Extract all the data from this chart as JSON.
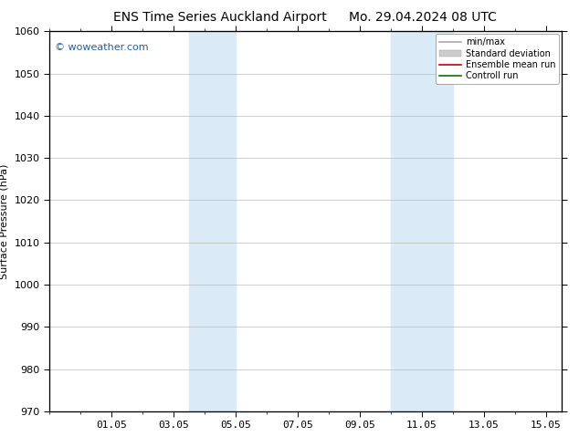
{
  "title1": "ENS Time Series Auckland Airport",
  "title2": "Mo. 29.04.2024 08 UTC",
  "ylabel": "Surface Pressure (hPa)",
  "ylim": [
    970,
    1060
  ],
  "yticks": [
    970,
    980,
    990,
    1000,
    1010,
    1020,
    1030,
    1040,
    1050,
    1060
  ],
  "xtick_labels": [
    "01.05",
    "03.05",
    "05.05",
    "07.05",
    "09.05",
    "11.05",
    "13.05",
    "15.05"
  ],
  "xtick_positions": [
    2,
    4,
    6,
    8,
    10,
    12,
    14,
    16
  ],
  "x_min": 0,
  "x_max": 16.5,
  "shaded_regions": [
    {
      "x_start": 4.5,
      "x_end": 6.0
    },
    {
      "x_start": 11.0,
      "x_end": 13.0
    }
  ],
  "shaded_color": "#daeaf6",
  "watermark": "© woweather.com",
  "watermark_color": "#1a5faa",
  "legend_items": [
    {
      "label": "min/max",
      "color": "#aaaaaa",
      "lw": 1.2,
      "type": "line"
    },
    {
      "label": "Standard deviation",
      "color": "#cccccc",
      "lw": 5,
      "type": "patch"
    },
    {
      "label": "Ensemble mean run",
      "color": "#cc0000",
      "lw": 1.2,
      "type": "line"
    },
    {
      "label": "Controll run",
      "color": "#007700",
      "lw": 1.2,
      "type": "line"
    }
  ],
  "bg_color": "#ffffff",
  "spine_color": "#000000",
  "grid_color": "#bbbbbb",
  "title_fontsize": 10,
  "tick_fontsize": 8,
  "ylabel_fontsize": 8,
  "watermark_fontsize": 8,
  "legend_fontsize": 7
}
